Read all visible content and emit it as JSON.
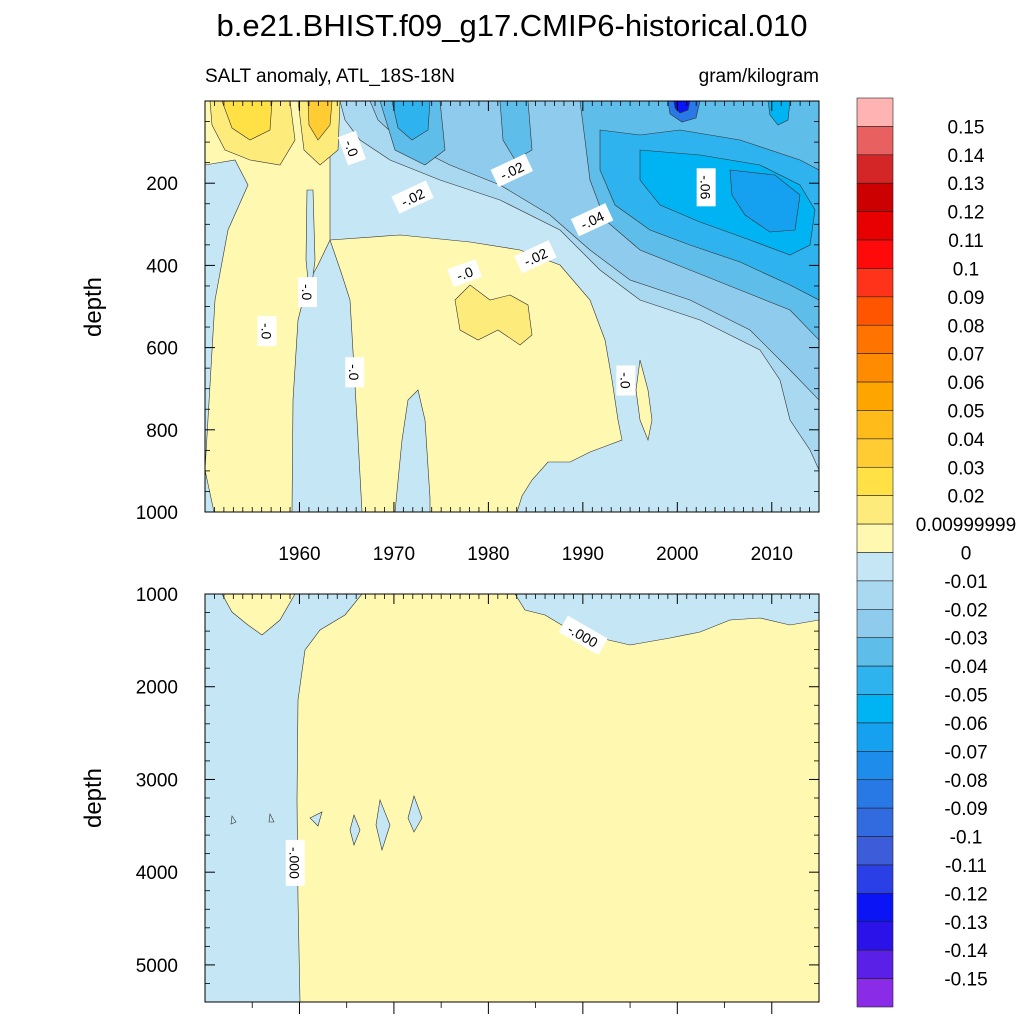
{
  "figure": {
    "title": "b.e21.BHIST.f09_g17.CMIP6-historical.010",
    "left_string": "SALT anomaly, ATL_18S-18N",
    "right_string": "gram/kilogram"
  },
  "chart_data": [
    {
      "type": "heatmap",
      "panel": "upper",
      "xlabel": "",
      "ylabel": "depth",
      "xlim": [
        1950,
        2015
      ],
      "ylim": [
        1000,
        0
      ],
      "x_ticks": [
        1960,
        1970,
        1980,
        1990,
        2000,
        2010
      ],
      "x_tick_labels": [
        "1960",
        "1970",
        "1980",
        "1990",
        "2000",
        "2010"
      ],
      "y_ticks": [
        200,
        400,
        600,
        800,
        1000
      ],
      "y_tick_labels": [
        "200",
        "400",
        "600",
        "800",
        "1000"
      ],
      "contour_labels": [
        {
          "text": "-.0",
          "x": 1965.5,
          "y": 115
        },
        {
          "text": "-.02",
          "x": 1972.0,
          "y": 235
        },
        {
          "text": "-.02",
          "x": 1982.5,
          "y": 170
        },
        {
          "text": "-.04",
          "x": 1991.0,
          "y": 290
        },
        {
          "text": "-.02",
          "x": 1985.0,
          "y": 380
        },
        {
          "text": "-.06",
          "x": 2003.0,
          "y": 210
        },
        {
          "text": "-.0",
          "x": 1977.5,
          "y": 420
        },
        {
          "text": "-.0",
          "x": 1960.8,
          "y": 465
        },
        {
          "text": "-.0",
          "x": 1956.5,
          "y": 560
        },
        {
          "text": "-.0",
          "x": 1965.8,
          "y": 660
        },
        {
          "text": "-.0",
          "x": 1994.5,
          "y": 680
        }
      ]
    },
    {
      "type": "heatmap",
      "panel": "lower",
      "xlabel": "",
      "ylabel": "depth",
      "xlim": [
        1950,
        2015
      ],
      "ylim": [
        5400,
        1000
      ],
      "y_ticks": [
        1000,
        2000,
        3000,
        4000,
        5000
      ],
      "y_tick_labels": [
        "1000",
        "2000",
        "3000",
        "4000",
        "5000"
      ],
      "contour_labels": [
        {
          "text": "-.000",
          "x": 1990.0,
          "y": 1450
        },
        {
          "text": "-.000",
          "x": 1959.5,
          "y": 3900
        }
      ]
    }
  ],
  "colorbar": {
    "levels": [
      "0.15",
      "0.14",
      "0.13",
      "0.12",
      "0.11",
      "0.1",
      "0.09",
      "0.08",
      "0.07",
      "0.06",
      "0.05",
      "0.04",
      "0.03",
      "0.02",
      "0.00999999",
      "0",
      "-0.01",
      "-0.02",
      "-0.03",
      "-0.04",
      "-0.05",
      "-0.06",
      "-0.07",
      "-0.08",
      "-0.09",
      "-0.1",
      "-0.11",
      "-0.12",
      "-0.13",
      "-0.14",
      "-0.15"
    ],
    "colors": [
      "#ffb3b3",
      "#e86060",
      "#d42626",
      "#cc0000",
      "#e60000",
      "#ff0a0a",
      "#ff3319",
      "#ff5500",
      "#ff7300",
      "#ff8c00",
      "#ffa500",
      "#ffbb1a",
      "#ffcc33",
      "#ffe045",
      "#fdeb7c",
      "#fff8b0",
      "#c5e6f5",
      "#a9d9f0",
      "#8ecbed",
      "#5ebde9",
      "#2fb3ef",
      "#00b4f4",
      "#16a0f0",
      "#1e8ceb",
      "#2878e6",
      "#326ae0",
      "#3c5cda",
      "#2a3fe6",
      "#0a14f5",
      "#2a12e8",
      "#5a20e8",
      "#8a2be8"
    ]
  },
  "colors": {
    "neg_light": "#c5e6f5",
    "neg_1": "#a9d9f0",
    "neg_2": "#8ecbed",
    "neg_3": "#5ebde9",
    "neg_4": "#2fb3ef",
    "neg_5": "#00b4f4",
    "neg_6": "#16a0f0",
    "neg_8": "#2878e6",
    "neg_12": "#0a14f5",
    "pos_light": "#fff8b0",
    "pos_1": "#fdeb7c",
    "pos_2": "#ffe045",
    "pos_3": "#ffcc33",
    "pos_4": "#ffbb1a",
    "pos_5": "#ffa500"
  }
}
